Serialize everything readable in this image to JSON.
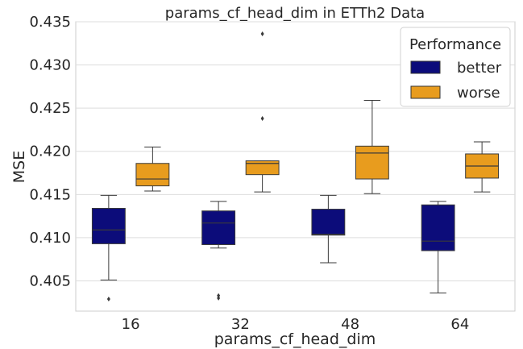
{
  "chart_data": {
    "type": "box",
    "title": "params_cf_head_dim in ETTh2 Data",
    "xlabel": "params_cf_head_dim",
    "ylabel": "MSE",
    "categories": [
      "16",
      "32",
      "48",
      "64"
    ],
    "ylim": [
      0.4015,
      0.435
    ],
    "yticks": [
      0.405,
      0.41,
      0.415,
      0.42,
      0.425,
      0.43,
      0.435
    ],
    "ytick_labels": [
      "0.405",
      "0.410",
      "0.415",
      "0.420",
      "0.425",
      "0.430",
      "0.435"
    ],
    "grid": true,
    "legend": {
      "title": "Performance",
      "position": "top-right"
    },
    "series": [
      {
        "name": "better",
        "color": "#0c0c7a",
        "boxes": [
          {
            "category": "16",
            "whisker_low": 0.4051,
            "q1": 0.4093,
            "median": 0.4109,
            "q3": 0.4134,
            "whisker_high": 0.4149,
            "outliers": [
              0.4029
            ]
          },
          {
            "category": "32",
            "whisker_low": 0.4088,
            "q1": 0.4092,
            "median": 0.4117,
            "q3": 0.4131,
            "whisker_high": 0.4142,
            "outliers": [
              0.403,
              0.4033
            ]
          },
          {
            "category": "48",
            "whisker_low": 0.4071,
            "q1": 0.4103,
            "median": 0.4104,
            "q3": 0.4133,
            "whisker_high": 0.4149,
            "outliers": []
          },
          {
            "category": "64",
            "whisker_low": 0.4036,
            "q1": 0.4085,
            "median": 0.4096,
            "q3": 0.4138,
            "whisker_high": 0.4142,
            "outliers": []
          }
        ]
      },
      {
        "name": "worse",
        "color": "#e89c1e",
        "boxes": [
          {
            "category": "16",
            "whisker_low": 0.4154,
            "q1": 0.416,
            "median": 0.4168,
            "q3": 0.4186,
            "whisker_high": 0.4205,
            "outliers": []
          },
          {
            "category": "32",
            "whisker_low": 0.4153,
            "q1": 0.4173,
            "median": 0.4186,
            "q3": 0.4189,
            "whisker_high": 0.4189,
            "outliers": [
              0.4238,
              0.4336
            ]
          },
          {
            "category": "48",
            "whisker_low": 0.4151,
            "q1": 0.4168,
            "median": 0.4198,
            "q3": 0.4206,
            "whisker_high": 0.4259,
            "outliers": []
          },
          {
            "category": "64",
            "whisker_low": 0.4153,
            "q1": 0.4169,
            "median": 0.4183,
            "q3": 0.4197,
            "whisker_high": 0.4211,
            "outliers": []
          }
        ]
      }
    ]
  }
}
